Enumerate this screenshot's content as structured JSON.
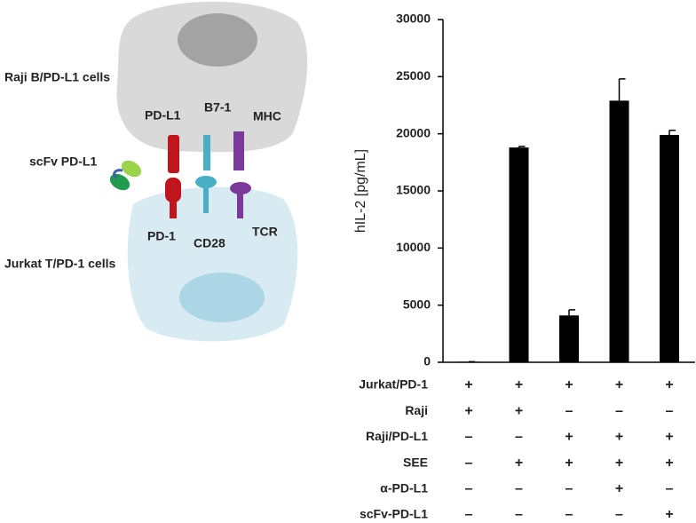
{
  "diagram": {
    "labels": [
      "Raji B/PD-L1 cells",
      "PD-L1",
      "B7-1",
      "MHC",
      "scFv PD-L1",
      "PD-1",
      "CD28",
      "TCR",
      "Jurkat T/PD-1 cells"
    ]
  },
  "chart_data": {
    "type": "bar",
    "y_label": "hIL-2 [pg/mL]",
    "categories": [
      null,
      null,
      null,
      null,
      null
    ],
    "values": [
      50,
      18800,
      4100,
      22900,
      19900
    ],
    "errors": [
      0,
      100,
      500,
      1900,
      400
    ],
    "color": "#000000",
    "ylim": [
      0,
      30000
    ],
    "yticks": [
      0,
      5000,
      10000,
      15000,
      20000,
      25000,
      30000
    ],
    "grid": false,
    "conditions": [
      {
        "label": "Jurkat/PD-1",
        "marks": [
          "+",
          "+",
          "+",
          "+",
          "+"
        ]
      },
      {
        "label": "Raji",
        "marks": [
          "+",
          "+",
          "–",
          "–",
          "–"
        ]
      },
      {
        "label": "Raji/PD-L1",
        "marks": [
          "–",
          "–",
          "+",
          "+",
          "+"
        ]
      },
      {
        "label": "SEE",
        "marks": [
          "–",
          "+",
          "+",
          "+",
          "+"
        ]
      },
      {
        "label": "α-PD-L1",
        "marks": [
          "–",
          "–",
          "–",
          "+",
          "–"
        ]
      },
      {
        "label": "scFv-PD-L1",
        "marks": [
          "–",
          "–",
          "–",
          "–",
          "+"
        ]
      }
    ]
  }
}
